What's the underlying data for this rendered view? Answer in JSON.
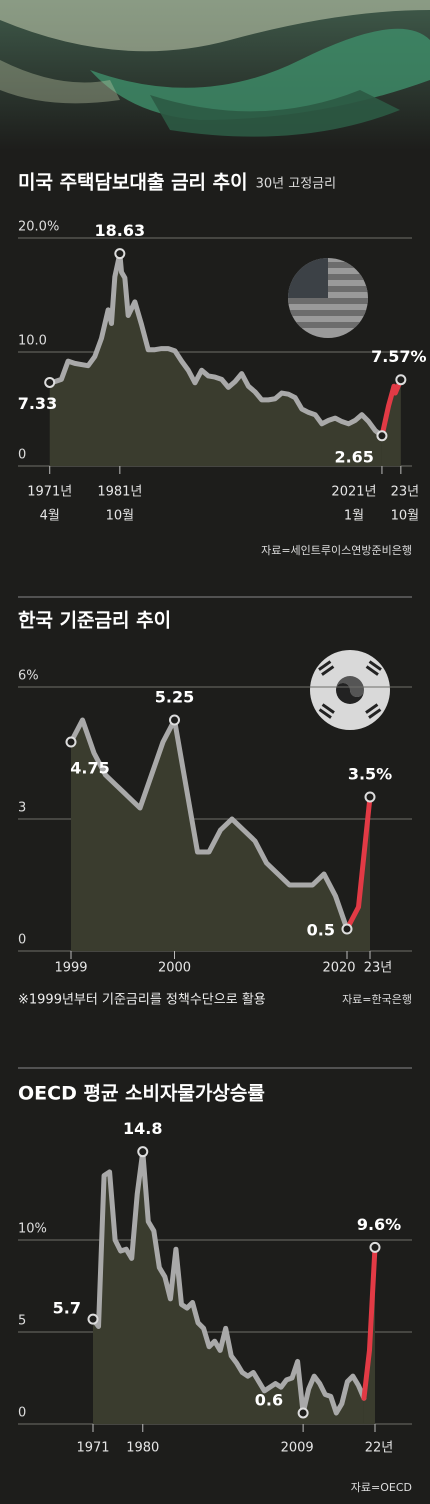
{
  "chart_data": [
    {
      "type": "line",
      "title": "미국 주택담보대출 금리 추이",
      "subtitle": "30년 고정금리",
      "source": "자료=세인트루이스연방준비은행",
      "xlim": [
        1966.5,
        2025.5
      ],
      "xticks": [
        {
          "value": 1971.25,
          "label": [
            "1971년",
            "4월"
          ]
        },
        {
          "value": 1981.75,
          "label": [
            "1981년",
            "10월"
          ]
        },
        {
          "value": 2021,
          "label": [
            "2021년",
            "1월"
          ]
        },
        {
          "value": 2023.83,
          "label": [
            "23년",
            "10월"
          ]
        }
      ],
      "ylim": [
        0,
        20
      ],
      "yticks": [
        {
          "value": 20,
          "label": "20.0%"
        },
        {
          "value": 10,
          "label": "10.0"
        },
        0
      ],
      "grid": true,
      "series": [
        {
          "color": "#a9a9a9",
          "x": [
            1971.25,
            1972,
            1973,
            1974,
            1975,
            1976,
            1977,
            1978,
            1979,
            1980,
            1980.5,
            1981,
            1981.75,
            1982,
            1982.5,
            1983,
            1984,
            1985,
            1986,
            1987,
            1988,
            1989,
            1990,
            1991,
            1992,
            1993,
            1994,
            1995,
            1996,
            1997,
            1998,
            1999,
            2000,
            2001,
            2002,
            2003,
            2004,
            2005,
            2006,
            2007,
            2008,
            2009,
            2010,
            2011,
            2012,
            2013,
            2014,
            2015,
            2016,
            2017,
            2018,
            2019,
            2020,
            2021
          ],
          "values": [
            7.33,
            7.4,
            7.6,
            9.2,
            9.0,
            8.9,
            8.8,
            9.6,
            11.2,
            13.7,
            12.5,
            16.6,
            18.63,
            17.0,
            16.5,
            13.2,
            14.4,
            12.4,
            10.2,
            10.2,
            10.3,
            10.3,
            10.1,
            9.2,
            8.4,
            7.3,
            8.4,
            7.9,
            7.8,
            7.6,
            6.9,
            7.4,
            8.1,
            7.0,
            6.5,
            5.8,
            5.8,
            5.9,
            6.4,
            6.3,
            6.0,
            5.0,
            4.7,
            4.5,
            3.7,
            4.0,
            4.2,
            3.9,
            3.7,
            4.0,
            4.5,
            3.9,
            3.1,
            2.65
          ],
          "value_labels": [
            "7.33",
            null,
            null,
            null,
            null,
            null,
            null,
            null,
            null,
            null,
            null,
            null,
            "18.63",
            null,
            null,
            null,
            null,
            null,
            null,
            null,
            null,
            null,
            null,
            null,
            null,
            null,
            null,
            null,
            null,
            null,
            null,
            null,
            null,
            null,
            null,
            null,
            null,
            null,
            null,
            null,
            null,
            null,
            null,
            null,
            null,
            null,
            null,
            null,
            null,
            null,
            null,
            null,
            null,
            null
          ]
        },
        {
          "color": "#e23a45",
          "x": [
            2021,
            2022,
            2022.8,
            2023,
            2023.83
          ],
          "values": [
            2.65,
            5.3,
            7.0,
            6.4,
            7.57
          ],
          "value_labels": [
            "2.65",
            null,
            null,
            null,
            "7.57%"
          ]
        }
      ]
    },
    {
      "type": "line",
      "title": "한국 기준금리 추이",
      "note": "※1999년부터 기준금리를 정책수단으로 활용",
      "source": "자료=한국은행",
      "categories": [
        "1999",
        null,
        null,
        null,
        null,
        null,
        null,
        null,
        null,
        "2000",
        null,
        null,
        null,
        null,
        null,
        null,
        null,
        null,
        null,
        null,
        null,
        null,
        null,
        null,
        "2020",
        null,
        "23년"
      ],
      "ylim": [
        0,
        6
      ],
      "yticks": [
        {
          "value": 6,
          "label": "6%"
        },
        3,
        0
      ],
      "grid": true,
      "series": [
        {
          "color": "#a9a9a9",
          "values": [
            4.75,
            5.25,
            4.5,
            4.0,
            3.75,
            3.5,
            3.25,
            4.0,
            4.75,
            5.25,
            3.75,
            2.25,
            2.25,
            2.75,
            3.0,
            2.75,
            2.5,
            2.0,
            1.75,
            1.5,
            1.5,
            1.5,
            1.75,
            1.25,
            0.5,
            null,
            null
          ],
          "value_labels": [
            "4.75",
            null,
            null,
            null,
            null,
            null,
            null,
            null,
            null,
            "5.25",
            null,
            null,
            null,
            null,
            null,
            null,
            null,
            null,
            null,
            null,
            null,
            null,
            null,
            null,
            null,
            null,
            null
          ]
        },
        {
          "color": "#e23a45",
          "values": [
            null,
            null,
            null,
            null,
            null,
            null,
            null,
            null,
            null,
            null,
            null,
            null,
            null,
            null,
            null,
            null,
            null,
            null,
            null,
            null,
            null,
            null,
            null,
            null,
            0.5,
            1.0,
            3.5
          ],
          "value_labels": [
            null,
            null,
            null,
            null,
            null,
            null,
            null,
            null,
            null,
            null,
            null,
            null,
            null,
            null,
            null,
            null,
            null,
            null,
            null,
            null,
            null,
            null,
            null,
            null,
            "0.5",
            null,
            "3.5%"
          ]
        }
      ]
    },
    {
      "type": "line",
      "title": "OECD 평균 소비자물가상승률",
      "source": "자료=OECD",
      "categories": [
        "1971",
        null,
        null,
        null,
        null,
        null,
        null,
        null,
        null,
        "1980",
        null,
        null,
        null,
        null,
        null,
        null,
        null,
        null,
        null,
        null,
        null,
        null,
        null,
        null,
        null,
        null,
        null,
        null,
        null,
        null,
        null,
        null,
        null,
        null,
        null,
        null,
        null,
        null,
        "2009",
        null,
        null,
        null,
        null,
        null,
        null,
        null,
        null,
        null,
        null,
        null,
        null,
        "22년"
      ],
      "ylim": [
        0,
        16
      ],
      "yticks": [
        {
          "value": 10,
          "label": "10%"
        },
        5,
        0
      ],
      "grid": true,
      "series": [
        {
          "color": "#a9a9a9",
          "values": [
            5.7,
            5.3,
            13.5,
            13.7,
            10.0,
            9.4,
            9.5,
            9.0,
            12.5,
            14.8,
            11.0,
            10.5,
            8.5,
            8.0,
            6.8,
            9.5,
            6.5,
            6.3,
            6.6,
            5.5,
            5.2,
            4.2,
            4.5,
            4.0,
            5.2,
            3.7,
            3.3,
            2.8,
            2.6,
            2.8,
            2.3,
            1.8,
            2.0,
            2.2,
            2.0,
            2.4,
            2.5,
            3.4,
            0.6,
            1.9,
            2.6,
            2.2,
            1.6,
            1.5,
            0.6,
            1.1,
            2.3,
            2.6,
            2.1,
            1.4,
            null,
            null
          ],
          "value_labels": [
            "5.7",
            null,
            null,
            null,
            null,
            null,
            null,
            null,
            null,
            "14.8",
            null,
            null,
            null,
            null,
            null,
            null,
            null,
            null,
            null,
            null,
            null,
            null,
            null,
            null,
            null,
            null,
            null,
            null,
            null,
            null,
            null,
            null,
            null,
            null,
            null,
            null,
            null,
            null,
            "0.6",
            null,
            null,
            null,
            null,
            null,
            null,
            null,
            null,
            null,
            null,
            null,
            null,
            null
          ]
        },
        {
          "color": "#e23a45",
          "values": [
            null,
            null,
            null,
            null,
            null,
            null,
            null,
            null,
            null,
            null,
            null,
            null,
            null,
            null,
            null,
            null,
            null,
            null,
            null,
            null,
            null,
            null,
            null,
            null,
            null,
            null,
            null,
            null,
            null,
            null,
            null,
            null,
            null,
            null,
            null,
            null,
            null,
            null,
            null,
            null,
            null,
            null,
            null,
            null,
            null,
            null,
            null,
            null,
            null,
            1.4,
            4.0,
            9.6
          ],
          "value_labels": [
            null,
            null,
            null,
            null,
            null,
            null,
            null,
            null,
            null,
            null,
            null,
            null,
            null,
            null,
            null,
            null,
            null,
            null,
            null,
            null,
            null,
            null,
            null,
            null,
            null,
            null,
            null,
            null,
            null,
            null,
            null,
            null,
            null,
            null,
            null,
            null,
            null,
            null,
            null,
            null,
            null,
            null,
            null,
            null,
            null,
            null,
            null,
            null,
            null,
            null,
            null,
            "9.6%"
          ]
        }
      ]
    }
  ]
}
